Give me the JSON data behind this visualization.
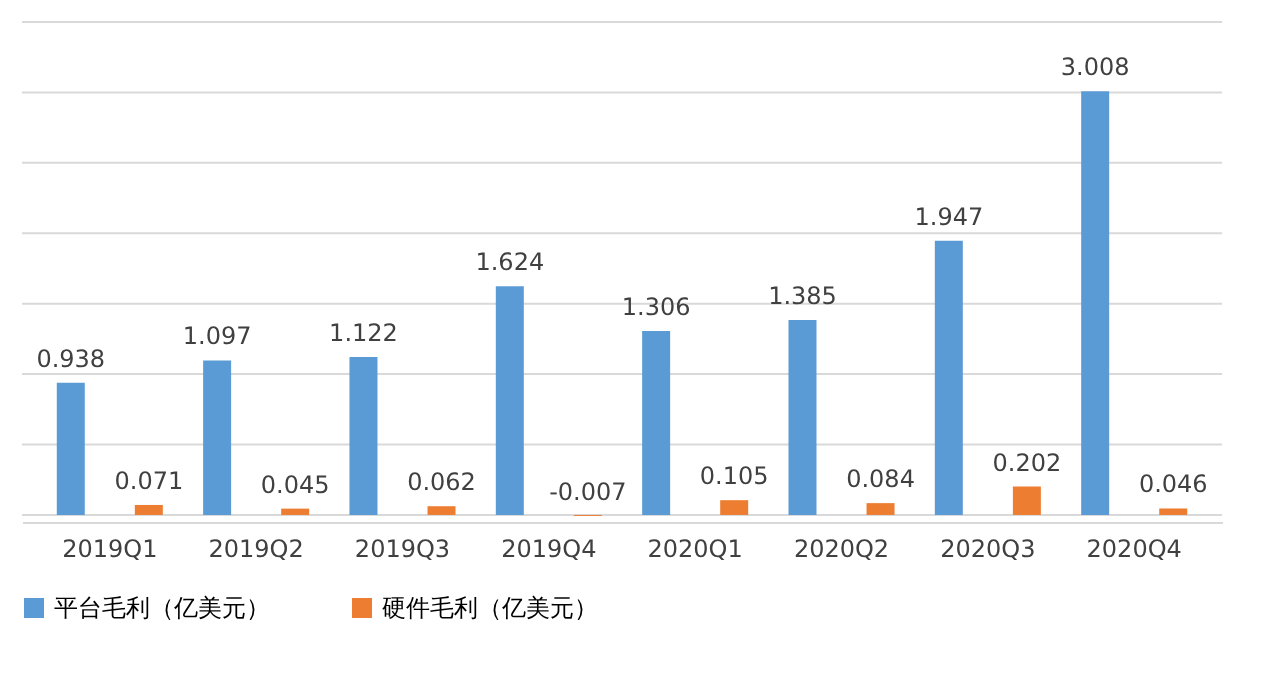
{
  "chart_data": {
    "type": "bar",
    "categories": [
      "2019Q1",
      "2019Q2",
      "2019Q3",
      "2019Q4",
      "2020Q1",
      "2020Q2",
      "2020Q3",
      "2020Q4"
    ],
    "series": [
      {
        "name": "平台毛利（亿美元）",
        "color": "#5b9bd5",
        "values": [
          0.938,
          1.097,
          1.122,
          1.624,
          1.306,
          1.385,
          1.947,
          3.008
        ]
      },
      {
        "name": "硬件毛利（亿美元）",
        "color": "#ed7d31",
        "values": [
          0.071,
          0.045,
          0.062,
          -0.007,
          0.105,
          0.084,
          0.202,
          0.046
        ]
      }
    ],
    "ylim": [
      -0.05,
      3.5
    ],
    "yticks": [
      {
        "value": 0,
        "label": null
      },
      {
        "value": 0.5,
        "label": null
      },
      {
        "value": 1,
        "label": null
      },
      {
        "value": 1.5,
        "label": null
      },
      {
        "value": 2,
        "label": null
      },
      {
        "value": 2.5,
        "label": null
      },
      {
        "value": 3,
        "label": null
      },
      {
        "value": 3.5,
        "label": null
      }
    ],
    "tick_labels": "x",
    "grid": "y",
    "legend": "bottom",
    "data_labels": true
  }
}
